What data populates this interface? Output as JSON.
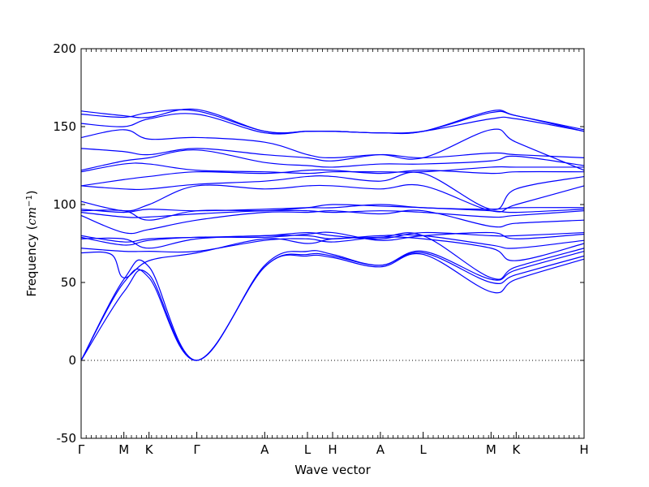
{
  "chart_data": {
    "type": "line",
    "title": "",
    "xlabel": "Wave vector",
    "ylabel": "Frequency ($cm^{-1}$)",
    "ylabel_parts": {
      "text": "Frequency (",
      "unit": "cm",
      "exp": "−1",
      "close": ")"
    },
    "ylim": [
      -50,
      200
    ],
    "yticks": [
      -50,
      0,
      50,
      100,
      150,
      200
    ],
    "high_symmetry_points": [
      {
        "label": "Γ",
        "pos": 0.0
      },
      {
        "label": "M",
        "pos": 0.85
      },
      {
        "label": "K",
        "pos": 1.35
      },
      {
        "label": "Γ",
        "pos": 2.3
      },
      {
        "label": "A",
        "pos": 3.65
      },
      {
        "label": "L",
        "pos": 4.5
      },
      {
        "label": "H",
        "pos": 5.0
      },
      {
        "label": "A",
        "pos": 5.95
      },
      {
        "label": "L",
        "pos": 6.8
      },
      {
        "label": "M",
        "pos": 8.15
      },
      {
        "label": "K",
        "pos": 8.65
      },
      {
        "label": "H",
        "pos": 10.0
      }
    ],
    "xlim": [
      0,
      10
    ],
    "zero_line": {
      "value": 0,
      "style": "dotted",
      "color": "#000000"
    },
    "line_color": "#0000ff",
    "grid": false,
    "series": [
      {
        "x": [
          0,
          0.85,
          1.35,
          2.3,
          3.65,
          4.5,
          5.0,
          5.95,
          6.8,
          8.15,
          8.65,
          10
        ],
        "values": [
          0,
          44,
          55,
          0,
          60,
          67,
          66,
          60,
          68,
          44,
          52,
          65
        ]
      },
      {
        "x": [
          0,
          0.85,
          1.35,
          2.3,
          3.65,
          4.5,
          5.0,
          5.95,
          6.8,
          8.15,
          8.65,
          10
        ],
        "values": [
          0,
          50,
          53,
          0,
          60,
          68,
          67,
          61,
          69,
          50,
          55,
          67
        ]
      },
      {
        "x": [
          0,
          0.85,
          1.35,
          2.3,
          3.65,
          4.5,
          5.0,
          5.95,
          6.8,
          8.15,
          8.65,
          10
        ],
        "values": [
          0,
          52,
          60,
          0,
          61,
          70,
          68,
          61,
          70,
          52,
          58,
          70
        ]
      },
      {
        "x": [
          0,
          0.6,
          0.85,
          1.35,
          2.3,
          3.65,
          4.5,
          5.0,
          5.95,
          6.8,
          8.15,
          8.65,
          10
        ],
        "values": [
          69,
          68,
          53,
          64,
          69,
          78,
          75,
          78,
          79,
          80,
          53,
          60,
          72
        ]
      },
      {
        "x": [
          0,
          0.85,
          1.35,
          2.3,
          3.65,
          4.5,
          5.0,
          5.95,
          6.8,
          8.15,
          8.65,
          10
        ],
        "values": [
          72,
          70,
          70,
          70,
          77,
          78,
          76,
          79,
          78,
          72,
          64,
          75
        ]
      },
      {
        "x": [
          0,
          0.85,
          1.35,
          2.3,
          3.65,
          4.5,
          5.0,
          5.95,
          6.8,
          8.15,
          8.65,
          10
        ],
        "values": [
          78,
          78,
          72,
          78,
          80,
          80,
          78,
          80,
          80,
          74,
          72,
          77
        ]
      },
      {
        "x": [
          0,
          0.85,
          1.35,
          2.3,
          3.65,
          4.5,
          5.0,
          5.95,
          6.8,
          8.15,
          8.65,
          10
        ],
        "values": [
          80,
          76,
          78,
          79,
          80,
          82,
          80,
          78,
          82,
          80,
          80,
          82
        ]
      },
      {
        "x": [
          0,
          0.85,
          1.35,
          2.3,
          3.65,
          4.5,
          5.0,
          5.95,
          6.8,
          8.15,
          8.65,
          10
        ],
        "values": [
          79,
          74,
          77,
          79,
          79,
          81,
          82,
          77,
          80,
          82,
          78,
          81
        ]
      },
      {
        "x": [
          0,
          0.85,
          1.35,
          2.3,
          3.65,
          4.5,
          5.0,
          5.95,
          6.8,
          8.15,
          8.65,
          10
        ],
        "values": [
          93,
          82,
          84,
          90,
          95,
          95,
          96,
          94,
          96,
          86,
          88,
          90
        ]
      },
      {
        "x": [
          0,
          0.85,
          1.35,
          2.3,
          3.65,
          4.5,
          5.0,
          5.95,
          6.8,
          8.15,
          8.65,
          10
        ],
        "values": [
          95,
          92,
          92,
          94,
          96,
          96,
          95,
          96,
          95,
          92,
          93,
          96
        ]
      },
      {
        "x": [
          0,
          0.85,
          1.35,
          2.3,
          3.65,
          4.5,
          5.0,
          5.95,
          6.8,
          8.15,
          8.65,
          10
        ],
        "values": [
          96,
          96,
          90,
          96,
          96,
          98,
          100,
          99,
          98,
          96,
          95,
          97
        ]
      },
      {
        "x": [
          0,
          0.85,
          1.35,
          2.3,
          3.65,
          4.5,
          5.0,
          5.95,
          6.8,
          8.15,
          8.65,
          10
        ],
        "values": [
          97,
          95,
          97,
          96,
          97,
          98,
          98,
          100,
          98,
          97,
          98,
          98
        ]
      },
      {
        "x": [
          0,
          0.85,
          1.35,
          2.3,
          3.65,
          4.5,
          5.0,
          5.95,
          6.8,
          8.15,
          8.65,
          10
        ],
        "values": [
          102,
          96,
          100,
          112,
          110,
          112,
          112,
          110,
          112,
          96,
          100,
          112
        ]
      },
      {
        "x": [
          0,
          0.85,
          1.35,
          2.3,
          3.65,
          4.5,
          5.0,
          5.95,
          6.8,
          8.15,
          8.65,
          10
        ],
        "values": [
          112,
          110,
          110,
          113,
          115,
          118,
          118,
          115,
          120,
          97,
          110,
          118
        ]
      },
      {
        "x": [
          0,
          0.85,
          1.35,
          2.3,
          3.65,
          4.5,
          5.0,
          5.95,
          6.8,
          8.15,
          8.65,
          10
        ],
        "values": [
          112,
          116,
          118,
          121,
          120,
          122,
          122,
          120,
          122,
          120,
          121,
          121
        ]
      },
      {
        "x": [
          0,
          0.85,
          1.35,
          2.3,
          3.65,
          4.5,
          5.0,
          5.95,
          6.8,
          8.15,
          8.65,
          10
        ],
        "values": [
          121,
          126,
          126,
          122,
          121,
          120,
          121,
          121,
          121,
          124,
          124,
          124
        ]
      },
      {
        "x": [
          0,
          0.85,
          1.35,
          2.3,
          3.65,
          4.5,
          5.0,
          5.95,
          6.8,
          8.15,
          8.65,
          10
        ],
        "values": [
          122,
          128,
          130,
          135,
          127,
          125,
          124,
          126,
          126,
          128,
          131,
          125
        ]
      },
      {
        "x": [
          0,
          0.85,
          1.35,
          2.3,
          3.65,
          4.5,
          5.0,
          5.95,
          6.8,
          8.15,
          8.65,
          10
        ],
        "values": [
          136,
          134,
          132,
          136,
          132,
          130,
          128,
          132,
          130,
          133,
          132,
          130
        ]
      },
      {
        "x": [
          0,
          0.85,
          1.35,
          2.3,
          3.65,
          4.5,
          5.0,
          5.95,
          6.8,
          8.15,
          8.65,
          10
        ],
        "values": [
          143,
          148,
          142,
          143,
          140,
          132,
          130,
          132,
          130,
          148,
          140,
          122
        ]
      },
      {
        "x": [
          0,
          0.85,
          1.35,
          2.3,
          3.65,
          4.5,
          5.0,
          5.95,
          6.8,
          8.15,
          8.65,
          10
        ],
        "values": [
          152,
          150,
          155,
          158,
          146,
          147,
          147,
          146,
          147,
          155,
          155,
          147
        ]
      },
      {
        "x": [
          0,
          0.85,
          1.35,
          2.3,
          3.65,
          4.5,
          5.0,
          5.95,
          6.8,
          8.15,
          8.65,
          10
        ],
        "values": [
          158,
          156,
          159,
          160,
          147,
          147,
          147,
          146,
          147,
          159,
          157,
          147
        ]
      },
      {
        "x": [
          0,
          0.85,
          1.35,
          2.3,
          3.65,
          4.5,
          5.0,
          5.95,
          6.8,
          8.15,
          8.65,
          10
        ],
        "values": [
          160,
          157,
          156,
          161,
          147,
          147,
          147,
          146,
          147,
          160,
          157,
          148
        ]
      }
    ]
  }
}
